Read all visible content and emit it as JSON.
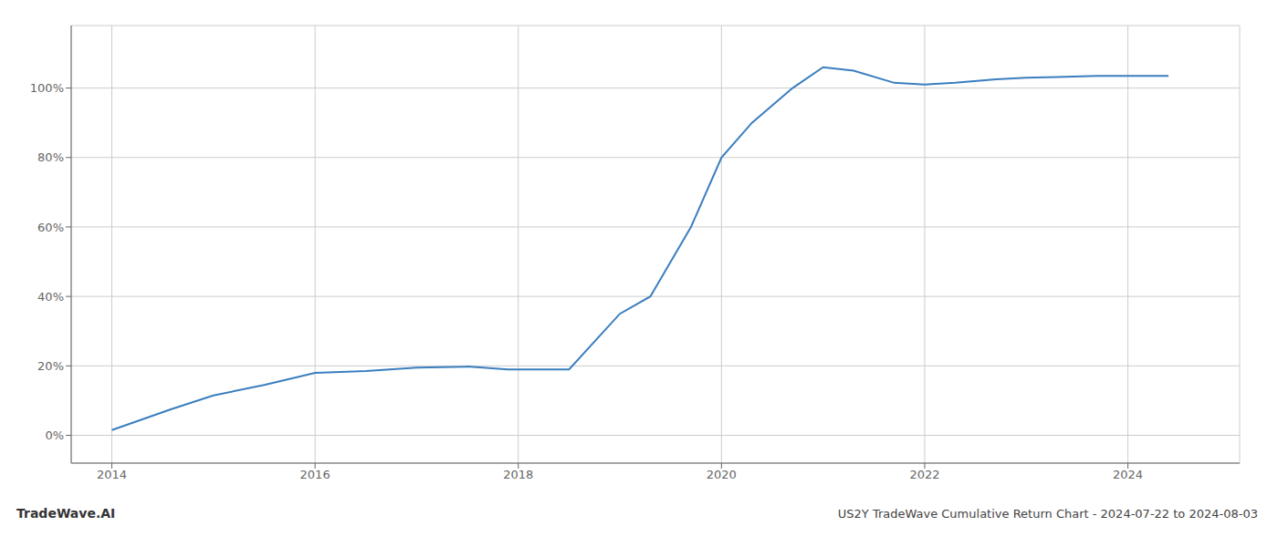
{
  "chart_data": {
    "type": "line",
    "title": "US2Y TradeWave Cumulative Return Chart - 2024-07-22 to 2024-08-03",
    "annotations": [
      "TradeWave.AI"
    ],
    "x": [
      2014.0,
      2014.58,
      2015.0,
      2015.5,
      2016.0,
      2016.5,
      2017.0,
      2017.5,
      2017.9,
      2018.5,
      2019.0,
      2019.3,
      2019.7,
      2020.0,
      2020.3,
      2020.7,
      2021.0,
      2021.3,
      2021.7,
      2022.0,
      2022.3,
      2022.7,
      2023.0,
      2023.3,
      2023.7,
      2024.0,
      2024.4
    ],
    "values": [
      1.5,
      7.5,
      11.5,
      14.5,
      18.0,
      18.5,
      19.5,
      19.8,
      19.0,
      19.0,
      35.0,
      40.0,
      60.0,
      80.0,
      90.0,
      100.0,
      106.0,
      105.0,
      101.5,
      101.0,
      101.5,
      102.5,
      103.0,
      103.2,
      103.5,
      103.5,
      103.5
    ],
    "color": "#3a7ebf",
    "xlim": [
      2013.6,
      2025.1
    ],
    "ylim": [
      -8,
      118
    ],
    "xticks": [
      2014,
      2016,
      2018,
      2020,
      2022,
      2024
    ],
    "yticks": [
      {
        "value": 0,
        "label": "0%"
      },
      {
        "value": 20,
        "label": "20%"
      },
      {
        "value": 40,
        "label": "40%"
      },
      {
        "value": 60,
        "label": "60%"
      },
      {
        "value": 80,
        "label": "80%"
      },
      {
        "value": 100,
        "label": "100%"
      }
    ],
    "grid": true
  }
}
